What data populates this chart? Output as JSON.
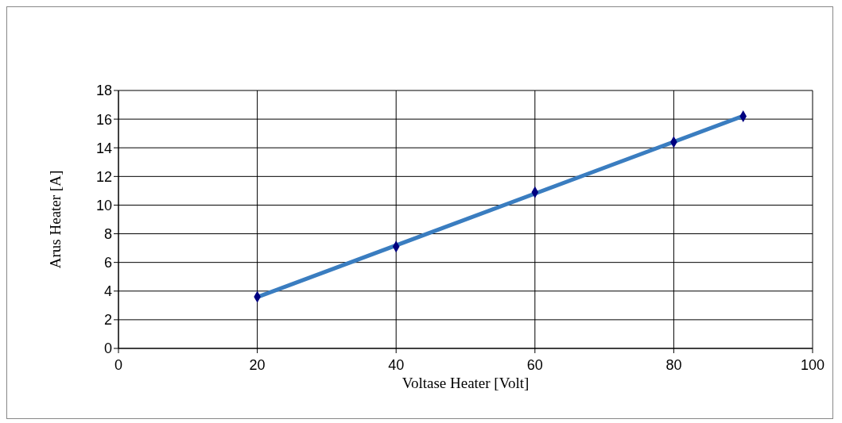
{
  "chart_data": {
    "type": "scatter",
    "xlabel": "Voltase Heater [Volt]",
    "ylabel": "Arus Heater [A]",
    "xlim": [
      0,
      100
    ],
    "xticks": [
      0,
      20,
      40,
      60,
      80,
      100
    ],
    "ylim": [
      0,
      18
    ],
    "yticks": [
      0,
      2,
      4,
      6,
      8,
      10,
      12,
      14,
      16,
      18
    ],
    "grid": true,
    "series": [
      {
        "type": "line",
        "color": "#3a7dc0",
        "x": [
          20,
          90
        ],
        "values": [
          3.58,
          16.22
        ],
        "marker": "none"
      },
      {
        "color": "#000080",
        "x": [
          20,
          40,
          60,
          80,
          90
        ],
        "values": [
          3.6,
          7.1,
          10.9,
          14.4,
          16.2
        ],
        "marker": "diamond"
      }
    ]
  }
}
